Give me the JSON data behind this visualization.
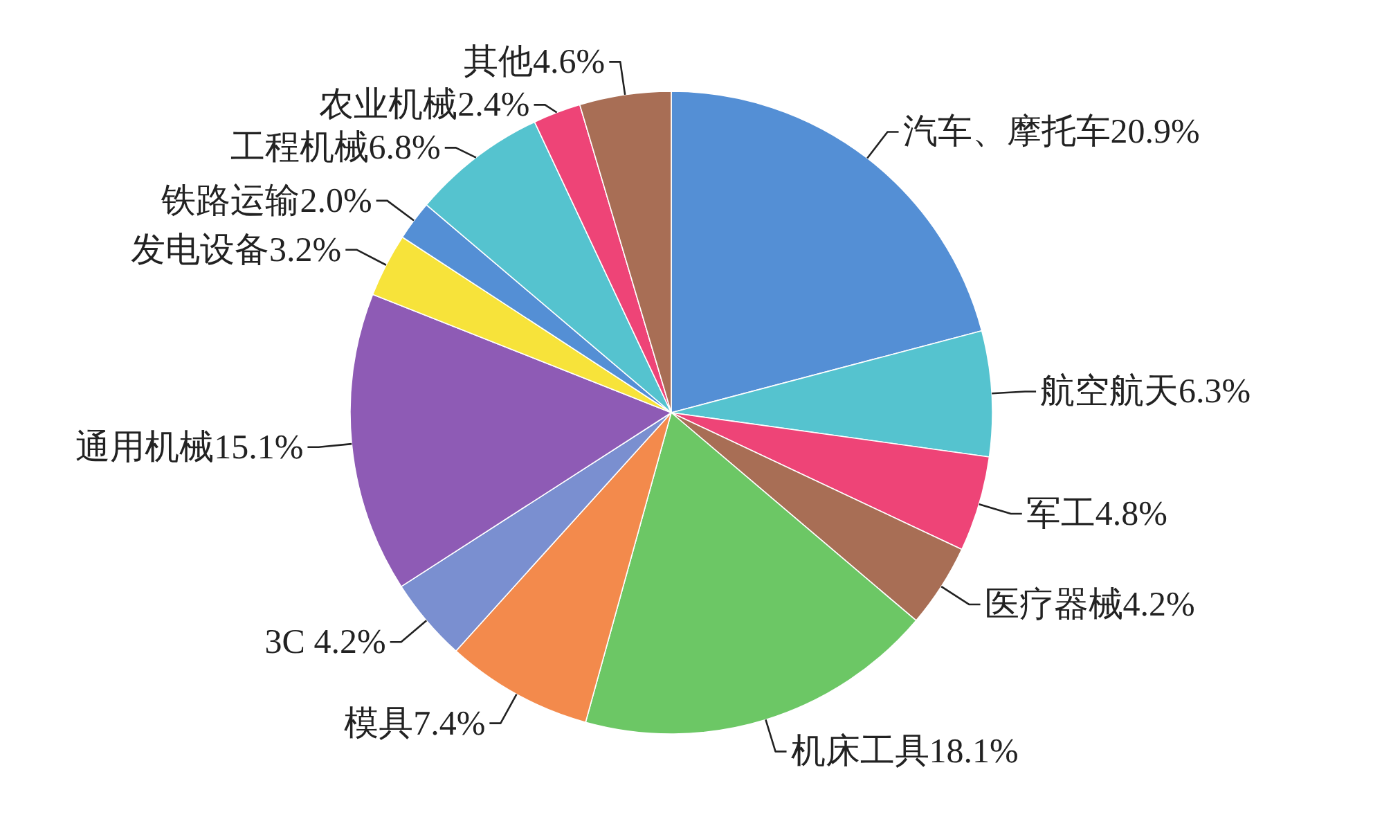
{
  "chart_data": {
    "type": "pie",
    "categories": [
      "汽车、摩托车",
      "航空航天",
      "军工",
      "医疗器械",
      "机床工具",
      "模具",
      "3C",
      "通用机械",
      "发电设备",
      "铁路运输",
      "工程机械",
      "农业机械",
      "其他"
    ],
    "values": [
      20.9,
      6.3,
      4.8,
      4.2,
      18.1,
      7.4,
      4.2,
      15.1,
      3.2,
      2.0,
      6.8,
      2.4,
      4.6
    ],
    "value_labels": [
      "20.9%",
      "6.3%",
      "4.8%",
      "4.2%",
      "18.1%",
      "7.4%",
      "4.2%",
      "15.1%",
      "3.2%",
      "2.0%",
      "6.8%",
      "2.4%",
      "4.6%"
    ],
    "colors": [
      "#548fd5",
      "#55c3cf",
      "#ee4477",
      "#a86e55",
      "#6cc765",
      "#f38a4c",
      "#7a8fd0",
      "#8e5bb5",
      "#f7e33a",
      "#548fd5",
      "#55c3cf",
      "#ee4477",
      "#a86e55"
    ]
  }
}
